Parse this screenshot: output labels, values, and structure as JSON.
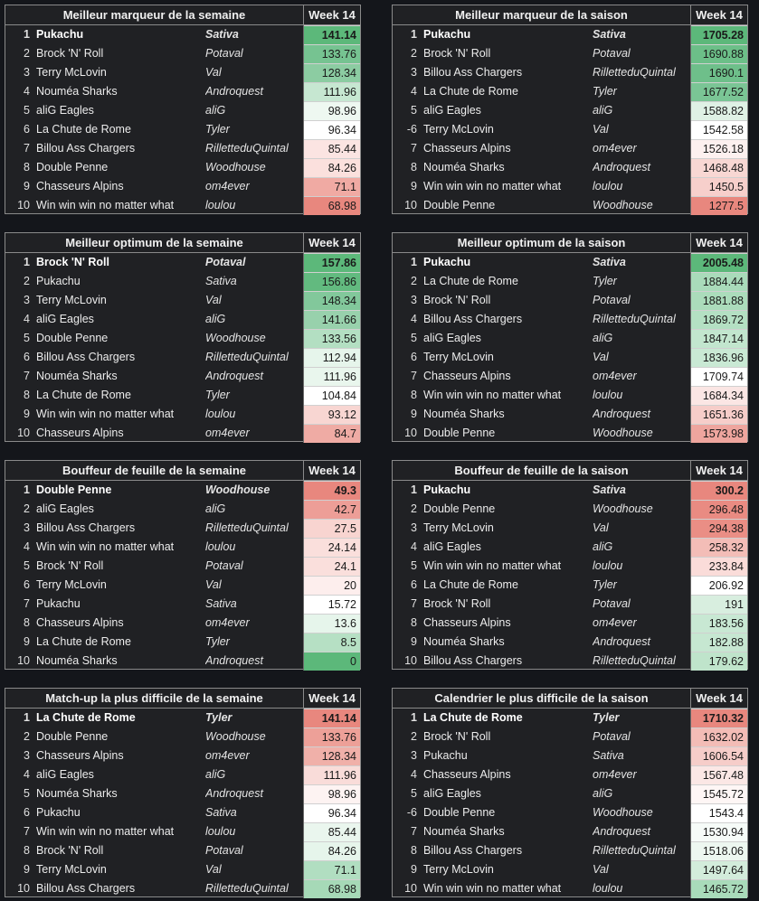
{
  "boards": [
    {
      "title": "Meilleur marqueur de la semaine",
      "column": "Week 14",
      "rows": [
        {
          "rank": "1",
          "team": "Pukachu",
          "owner": "Sativa",
          "value": "141.14",
          "color": "#5cb87a"
        },
        {
          "rank": "2",
          "team": "Brock 'N' Roll",
          "owner": "Potaval",
          "value": "133.76",
          "color": "#76c391"
        },
        {
          "rank": "3",
          "team": "Terry McLovin",
          "owner": "Val",
          "value": "128.34",
          "color": "#8ccca2"
        },
        {
          "rank": "4",
          "team": "Nouméa Sharks",
          "owner": "Androquest",
          "value": "111.96",
          "color": "#c6e7d1"
        },
        {
          "rank": "5",
          "team": "aliG Eagles",
          "owner": "aliG",
          "value": "98.96",
          "color": "#eef8f1"
        },
        {
          "rank": "6",
          "team": "La Chute de Rome",
          "owner": "Tyler",
          "value": "96.34",
          "color": "#ffffff"
        },
        {
          "rank": "7",
          "team": "Billou Ass Chargers",
          "owner": "RilletteduQuintal",
          "value": "85.44",
          "color": "#fbe4e2"
        },
        {
          "rank": "8",
          "team": "Double Penne",
          "owner": "Woodhouse",
          "value": "84.26",
          "color": "#fbe0dd"
        },
        {
          "rank": "9",
          "team": "Chasseurs Alpins",
          "owner": "om4ever",
          "value": "71.1",
          "color": "#f0aaa3"
        },
        {
          "rank": "10",
          "team": "Win win win no matter what",
          "owner": "loulou",
          "value": "68.98",
          "color": "#e8877e"
        }
      ]
    },
    {
      "title": "Meilleur marqueur de la saison",
      "column": "Week 14",
      "rows": [
        {
          "rank": "1",
          "team": "Pukachu",
          "owner": "Sativa",
          "value": "1705.28",
          "color": "#5cb87a"
        },
        {
          "rank": "2",
          "team": "Brock 'N' Roll",
          "owner": "Potaval",
          "value": "1690.88",
          "color": "#6cbf88"
        },
        {
          "rank": "3",
          "team": "Billou Ass Chargers",
          "owner": "RilletteduQuintal",
          "value": "1690.1",
          "color": "#6ebf8a"
        },
        {
          "rank": "4",
          "team": "La Chute de Rome",
          "owner": "Tyler",
          "value": "1677.52",
          "color": "#7ac595"
        },
        {
          "rank": "5",
          "team": "aliG Eagles",
          "owner": "aliG",
          "value": "1588.82",
          "color": "#dff1e5"
        },
        {
          "rank": "-6",
          "team": "Terry McLovin",
          "owner": "Val",
          "value": "1542.58",
          "color": "#ffffff"
        },
        {
          "rank": "7",
          "team": "Chasseurs Alpins",
          "owner": "om4ever",
          "value": "1526.18",
          "color": "#fdf0ef"
        },
        {
          "rank": "8",
          "team": "Nouméa Sharks",
          "owner": "Androquest",
          "value": "1468.48",
          "color": "#f8d7d3"
        },
        {
          "rank": "9",
          "team": "Win win win no matter what",
          "owner": "loulou",
          "value": "1450.5",
          "color": "#f7cfcb"
        },
        {
          "rank": "10",
          "team": "Double Penne",
          "owner": "Woodhouse",
          "value": "1277.5",
          "color": "#e8877e"
        }
      ]
    },
    {
      "title": "Meilleur optimum de la semaine",
      "column": "Week 14",
      "rows": [
        {
          "rank": "1",
          "team": "Brock 'N' Roll",
          "owner": "Potaval",
          "value": "157.86",
          "color": "#5cb87a"
        },
        {
          "rank": "2",
          "team": "Pukachu",
          "owner": "Sativa",
          "value": "156.86",
          "color": "#62ba7f"
        },
        {
          "rank": "3",
          "team": "Terry McLovin",
          "owner": "Val",
          "value": "148.34",
          "color": "#82c89b"
        },
        {
          "rank": "4",
          "team": "aliG Eagles",
          "owner": "aliG",
          "value": "141.66",
          "color": "#98d1ac"
        },
        {
          "rank": "5",
          "team": "Double Penne",
          "owner": "Woodhouse",
          "value": "133.56",
          "color": "#b3dfc2"
        },
        {
          "rank": "6",
          "team": "Billou Ass Chargers",
          "owner": "RilletteduQuintal",
          "value": "112.94",
          "color": "#e6f5eb"
        },
        {
          "rank": "7",
          "team": "Nouméa Sharks",
          "owner": "Androquest",
          "value": "111.96",
          "color": "#e9f6ed"
        },
        {
          "rank": "8",
          "team": "La Chute de Rome",
          "owner": "Tyler",
          "value": "104.84",
          "color": "#ffffff"
        },
        {
          "rank": "9",
          "team": "Win win win no matter what",
          "owner": "loulou",
          "value": "93.12",
          "color": "#f8d6d2"
        },
        {
          "rank": "10",
          "team": "Chasseurs Alpins",
          "owner": "om4ever",
          "value": "84.7",
          "color": "#efaba4"
        }
      ]
    },
    {
      "title": "Meilleur optimum de la saison",
      "column": "Week 14",
      "rows": [
        {
          "rank": "1",
          "team": "Pukachu",
          "owner": "Sativa",
          "value": "2005.48",
          "color": "#5cb87a"
        },
        {
          "rank": "2",
          "team": "La Chute de Rome",
          "owner": "Tyler",
          "value": "1884.44",
          "color": "#a9dbba"
        },
        {
          "rank": "3",
          "team": "Brock 'N' Roll",
          "owner": "Potaval",
          "value": "1881.88",
          "color": "#abdcbb"
        },
        {
          "rank": "4",
          "team": "Billou Ass Chargers",
          "owner": "RilletteduQuintal",
          "value": "1869.72",
          "color": "#b4e0c3"
        },
        {
          "rank": "5",
          "team": "aliG Eagles",
          "owner": "aliG",
          "value": "1847.14",
          "color": "#c2e6ce"
        },
        {
          "rank": "6",
          "team": "Terry McLovin",
          "owner": "Val",
          "value": "1836.96",
          "color": "#c9e9d4"
        },
        {
          "rank": "7",
          "team": "Chasseurs Alpins",
          "owner": "om4ever",
          "value": "1709.74",
          "color": "#ffffff"
        },
        {
          "rank": "8",
          "team": "Win win win no matter what",
          "owner": "loulou",
          "value": "1684.34",
          "color": "#fbe6e4"
        },
        {
          "rank": "9",
          "team": "Nouméa Sharks",
          "owner": "Androquest",
          "value": "1651.36",
          "color": "#f6cdc9"
        },
        {
          "rank": "10",
          "team": "Double Penne",
          "owner": "Woodhouse",
          "value": "1573.98",
          "color": "#eea59e"
        }
      ]
    },
    {
      "title": "Bouffeur de feuille de la semaine",
      "column": "Week 14",
      "rows": [
        {
          "rank": "1",
          "team": "Double Penne",
          "owner": "Woodhouse",
          "value": "49.3",
          "color": "#e8877e"
        },
        {
          "rank": "2",
          "team": "aliG Eagles",
          "owner": "aliG",
          "value": "42.7",
          "color": "#ed9e97"
        },
        {
          "rank": "3",
          "team": "Billou Ass Chargers",
          "owner": "RilletteduQuintal",
          "value": "27.5",
          "color": "#f8d4d0"
        },
        {
          "rank": "4",
          "team": "Win win win no matter what",
          "owner": "loulou",
          "value": "24.14",
          "color": "#fadfdc"
        },
        {
          "rank": "5",
          "team": "Brock 'N' Roll",
          "owner": "Potaval",
          "value": "24.1",
          "color": "#fadfdc"
        },
        {
          "rank": "6",
          "team": "Terry McLovin",
          "owner": "Val",
          "value": "20",
          "color": "#fdeeed"
        },
        {
          "rank": "7",
          "team": "Pukachu",
          "owner": "Sativa",
          "value": "15.72",
          "color": "#ffffff"
        },
        {
          "rank": "8",
          "team": "Chasseurs Alpins",
          "owner": "om4ever",
          "value": "13.6",
          "color": "#e6f5eb"
        },
        {
          "rank": "9",
          "team": "La Chute de Rome",
          "owner": "Tyler",
          "value": "8.5",
          "color": "#b6e0c4"
        },
        {
          "rank": "10",
          "team": "Nouméa Sharks",
          "owner": "Androquest",
          "value": "0",
          "color": "#5cb87a"
        }
      ]
    },
    {
      "title": "Bouffeur de feuille de la saison",
      "column": "Week 14",
      "rows": [
        {
          "rank": "1",
          "team": "Pukachu",
          "owner": "Sativa",
          "value": "300.2",
          "color": "#e8877e"
        },
        {
          "rank": "2",
          "team": "Double Penne",
          "owner": "Woodhouse",
          "value": "296.48",
          "color": "#e98b82"
        },
        {
          "rank": "3",
          "team": "Terry McLovin",
          "owner": "Val",
          "value": "294.38",
          "color": "#ea8e85"
        },
        {
          "rank": "4",
          "team": "aliG Eagles",
          "owner": "aliG",
          "value": "258.32",
          "color": "#f3bdb7"
        },
        {
          "rank": "5",
          "team": "Win win win no matter what",
          "owner": "loulou",
          "value": "233.84",
          "color": "#fadcd9"
        },
        {
          "rank": "6",
          "team": "La Chute de Rome",
          "owner": "Tyler",
          "value": "206.92",
          "color": "#ffffff"
        },
        {
          "rank": "7",
          "team": "Brock 'N' Roll",
          "owner": "Potaval",
          "value": "191",
          "color": "#d8eedf"
        },
        {
          "rank": "8",
          "team": "Chasseurs Alpins",
          "owner": "om4ever",
          "value": "183.56",
          "color": "#c8e8d3"
        },
        {
          "rank": "9",
          "team": "Nouméa Sharks",
          "owner": "Androquest",
          "value": "182.88",
          "color": "#c6e7d1"
        },
        {
          "rank": "10",
          "team": "Billou Ass Chargers",
          "owner": "RilletteduQuintal",
          "value": "179.62",
          "color": "#bfe4cb"
        }
      ]
    },
    {
      "title": "Match-up la plus difficile de la semaine",
      "column": "Week 14",
      "rows": [
        {
          "rank": "1",
          "team": "La Chute de Rome",
          "owner": "Tyler",
          "value": "141.14",
          "color": "#e8877e"
        },
        {
          "rank": "2",
          "team": "Double Penne",
          "owner": "Woodhouse",
          "value": "133.76",
          "color": "#eda098"
        },
        {
          "rank": "3",
          "team": "Chasseurs Alpins",
          "owner": "om4ever",
          "value": "128.34",
          "color": "#f0b0a9"
        },
        {
          "rank": "4",
          "team": "aliG Eagles",
          "owner": "aliG",
          "value": "111.96",
          "color": "#f9dcd9"
        },
        {
          "rank": "5",
          "team": "Nouméa Sharks",
          "owner": "Androquest",
          "value": "98.96",
          "color": "#fdf3f2"
        },
        {
          "rank": "6",
          "team": "Pukachu",
          "owner": "Sativa",
          "value": "96.34",
          "color": "#ffffff"
        },
        {
          "rank": "7",
          "team": "Win win win no matter what",
          "owner": "loulou",
          "value": "85.44",
          "color": "#eaf6ee"
        },
        {
          "rank": "8",
          "team": "Brock 'N' Roll",
          "owner": "Potaval",
          "value": "84.26",
          "color": "#e6f5eb"
        },
        {
          "rank": "9",
          "team": "Terry McLovin",
          "owner": "Val",
          "value": "71.1",
          "color": "#b1dec1"
        },
        {
          "rank": "10",
          "team": "Billou Ass Chargers",
          "owner": "RilletteduQuintal",
          "value": "68.98",
          "color": "#a6d9b7"
        }
      ]
    },
    {
      "title": "Calendrier le plus difficile de la saison",
      "column": "Week 14",
      "rows": [
        {
          "rank": "1",
          "team": "La Chute de Rome",
          "owner": "Tyler",
          "value": "1710.32",
          "color": "#e8877e"
        },
        {
          "rank": "2",
          "team": "Brock 'N' Roll",
          "owner": "Potaval",
          "value": "1632.02",
          "color": "#f3bcb6"
        },
        {
          "rank": "3",
          "team": "Pukachu",
          "owner": "Sativa",
          "value": "1606.54",
          "color": "#f6cdc9"
        },
        {
          "rank": "4",
          "team": "Chasseurs Alpins",
          "owner": "om4ever",
          "value": "1567.48",
          "color": "#fbe7e5"
        },
        {
          "rank": "5",
          "team": "aliG Eagles",
          "owner": "aliG",
          "value": "1545.72",
          "color": "#fef6f5"
        },
        {
          "rank": "-6",
          "team": "Double Penne",
          "owner": "Woodhouse",
          "value": "1543.4",
          "color": "#ffffff"
        },
        {
          "rank": "7",
          "team": "Nouméa Sharks",
          "owner": "Androquest",
          "value": "1530.94",
          "color": "#f6fbf8"
        },
        {
          "rank": "8",
          "team": "Billou Ass Chargers",
          "owner": "RilletteduQuintal",
          "value": "1518.06",
          "color": "#edf7f0"
        },
        {
          "rank": "9",
          "team": "Terry McLovin",
          "owner": "Val",
          "value": "1497.64",
          "color": "#d3ecdb"
        },
        {
          "rank": "10",
          "team": "Win win win no matter what",
          "owner": "loulou",
          "value": "1465.72",
          "color": "#a9dbba"
        }
      ]
    }
  ]
}
